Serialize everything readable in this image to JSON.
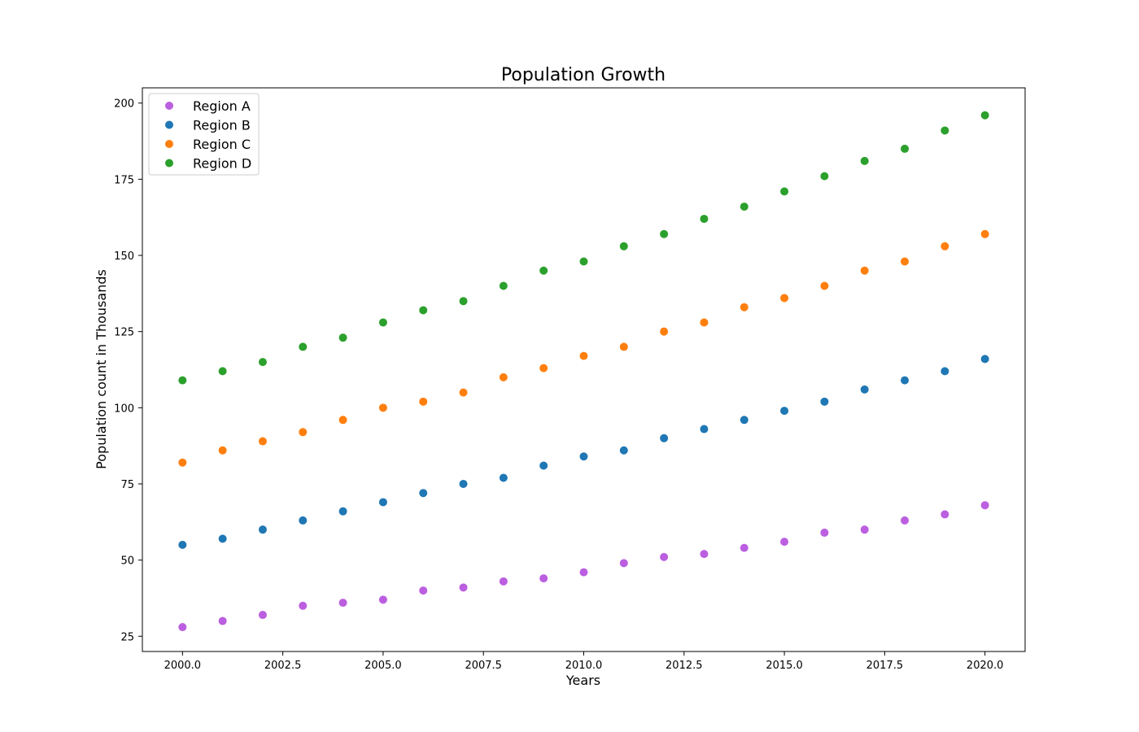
{
  "chart_data": {
    "type": "scatter",
    "title": "Population Growth",
    "xlabel": "Years",
    "ylabel": "Population count in Thousands",
    "xlim": [
      1999,
      2021
    ],
    "ylim": [
      20,
      205
    ],
    "xticks": [
      2000.0,
      2002.5,
      2005.0,
      2007.5,
      2010.0,
      2012.5,
      2015.0,
      2017.5,
      2020.0
    ],
    "xtick_labels": [
      "2000.0",
      "2002.5",
      "2005.0",
      "2007.5",
      "2010.0",
      "2012.5",
      "2015.0",
      "2017.5",
      "2020.0"
    ],
    "yticks": [
      25,
      50,
      75,
      100,
      125,
      150,
      175,
      200
    ],
    "ytick_labels": [
      "25",
      "50",
      "75",
      "100",
      "125",
      "150",
      "175",
      "200"
    ],
    "grid": false,
    "legend_position": "top-left",
    "x": [
      2000,
      2001,
      2002,
      2003,
      2004,
      2005,
      2006,
      2007,
      2008,
      2009,
      2010,
      2011,
      2012,
      2013,
      2014,
      2015,
      2016,
      2017,
      2018,
      2019,
      2020
    ],
    "series": [
      {
        "name": "Region A",
        "color": "#bb5fe0",
        "values": [
          28,
          30,
          32,
          35,
          36,
          37,
          40,
          41,
          43,
          44,
          46,
          49,
          51,
          52,
          54,
          56,
          59,
          60,
          63,
          65,
          68
        ]
      },
      {
        "name": "Region B",
        "color": "#1f77b4",
        "values": [
          55,
          57,
          60,
          63,
          66,
          69,
          72,
          75,
          77,
          81,
          84,
          86,
          90,
          93,
          96,
          99,
          102,
          106,
          109,
          112,
          116
        ]
      },
      {
        "name": "Region C",
        "color": "#ff7f0e",
        "values": [
          82,
          86,
          89,
          92,
          96,
          100,
          102,
          105,
          110,
          113,
          117,
          120,
          125,
          128,
          133,
          136,
          140,
          145,
          148,
          153,
          157
        ]
      },
      {
        "name": "Region D",
        "color": "#2ca02c",
        "values": [
          109,
          112,
          115,
          120,
          123,
          128,
          132,
          135,
          140,
          145,
          148,
          153,
          157,
          162,
          166,
          171,
          176,
          181,
          185,
          191,
          196
        ]
      }
    ]
  }
}
